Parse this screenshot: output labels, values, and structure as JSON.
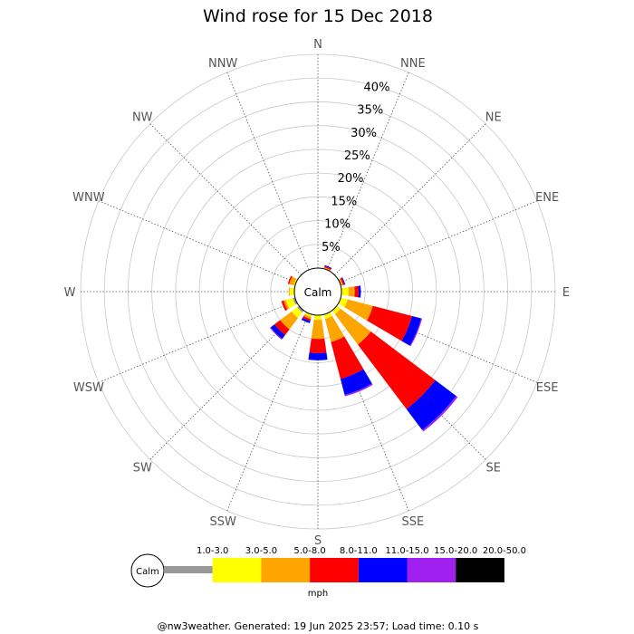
{
  "chart_data": {
    "type": "wind-rose",
    "title": "Wind rose for 15 Dec 2018",
    "directions": [
      "N",
      "NNE",
      "NE",
      "ENE",
      "E",
      "ESE",
      "SE",
      "SSE",
      "S",
      "SSW",
      "SW",
      "WSW",
      "W",
      "WNW",
      "NW",
      "NNW"
    ],
    "radial_ticks": [
      "5%",
      "10%",
      "15%",
      "20%",
      "25%",
      "30%",
      "35%",
      "40%"
    ],
    "radial_max": 45,
    "calm_label": "Calm",
    "unit_label": "mph",
    "bins": [
      {
        "label": "1.0-3.0",
        "color": "#999999"
      },
      {
        "label": "3.0-5.0",
        "color": "#ffff00"
      },
      {
        "label": "5.0-8.0",
        "color": "#ffa500"
      },
      {
        "label": "8.0-11.0",
        "color": "#ff0000"
      },
      {
        "label": "11.0-15.0",
        "color": "#0000ff"
      },
      {
        "label": "15.0-20.0",
        "color": "#a020f0"
      },
      {
        "label": "20.0-50.0",
        "color": "#000000"
      }
    ],
    "series": [
      {
        "direction": "NNE",
        "values": [
          0,
          0,
          0.3,
          0.3,
          0.2,
          0,
          0
        ]
      },
      {
        "direction": "ENE",
        "values": [
          0,
          0,
          0.5,
          0.3,
          0.2,
          0,
          0
        ]
      },
      {
        "direction": "E",
        "values": [
          0,
          1.5,
          1.3,
          0.8,
          0.5,
          0,
          0
        ]
      },
      {
        "direction": "ESE",
        "values": [
          0,
          1.5,
          5.5,
          8.5,
          2.0,
          0.2,
          0
        ]
      },
      {
        "direction": "SE",
        "values": [
          0,
          1.0,
          8.0,
          17.0,
          5.5,
          0.4,
          0
        ]
      },
      {
        "direction": "SSE",
        "values": [
          0,
          1.0,
          5.0,
          8.0,
          3.5,
          0.3,
          0
        ]
      },
      {
        "direction": "S",
        "values": [
          0,
          1.0,
          4.0,
          3.0,
          1.5,
          0,
          0
        ]
      },
      {
        "direction": "SSW",
        "values": [
          0,
          0.5,
          0.5,
          0.4,
          0.5,
          0,
          0
        ]
      },
      {
        "direction": "SW",
        "values": [
          0.5,
          1.5,
          3.0,
          1.5,
          1.0,
          0.2,
          0
        ]
      },
      {
        "direction": "WSW",
        "values": [
          0.5,
          1.5,
          0.5,
          0.5,
          0,
          0,
          0
        ]
      },
      {
        "direction": "W",
        "values": [
          0,
          1.0,
          0.2,
          0,
          0,
          0,
          0
        ]
      },
      {
        "direction": "WNW",
        "values": [
          0,
          0.3,
          1.0,
          0.3,
          0,
          0,
          0
        ]
      }
    ]
  },
  "footer": "@nw3weather. Generated: 19 Jun 2025 23:57; Load time: 0.10 s"
}
